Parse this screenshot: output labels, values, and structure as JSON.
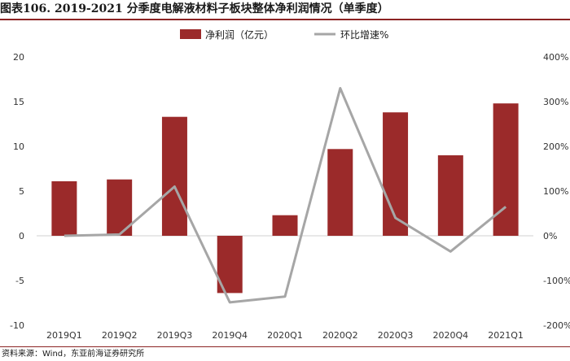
{
  "header": {
    "title": "图表106. 2019-2021 分季度电解液材料子板块整体净利润情况（单季度）"
  },
  "footer": {
    "source": "资料来源：Wind，东亚前海证券研究所"
  },
  "colors": {
    "bar": "#9b2a2a",
    "line": "#a6a6a6",
    "rule": "#8b2323"
  },
  "chart_data": {
    "type": "bar",
    "categories": [
      "2019Q1",
      "2019Q2",
      "2019Q3",
      "2019Q4",
      "2020Q1",
      "2020Q2",
      "2020Q3",
      "2020Q4",
      "2021Q1"
    ],
    "series": [
      {
        "name": "净利润（亿元）",
        "type": "bar",
        "axis": "left",
        "values": [
          6.1,
          6.3,
          13.3,
          -6.4,
          2.3,
          9.7,
          13.8,
          9.0,
          14.8
        ]
      },
      {
        "name": "环比增速%",
        "type": "line",
        "axis": "right",
        "values": [
          0,
          3,
          110,
          -149,
          -136,
          330,
          40,
          -35,
          65
        ]
      }
    ],
    "ylim": [
      -10,
      20
    ],
    "yticks": [
      "20",
      "15",
      "10",
      "5",
      "0",
      "-5",
      "-10"
    ],
    "ylim_right": [
      -200,
      400
    ],
    "yticks_right": [
      "400%",
      "300%",
      "200%",
      "100%",
      "0%",
      "-100%",
      "-200%"
    ],
    "legend_position": "top-center",
    "grid": false
  }
}
